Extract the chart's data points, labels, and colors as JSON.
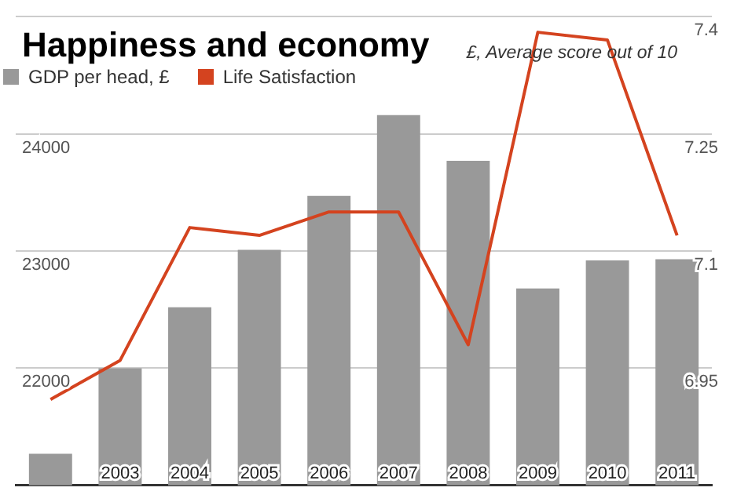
{
  "chart_data": {
    "type": "bar",
    "title": "Happiness and economy",
    "annotations": [
      "£, Average score out of 10"
    ],
    "categories": [
      null,
      "2003",
      "2004",
      "2005",
      "2006",
      "2007",
      "2008",
      "2009",
      "2010",
      "2011"
    ],
    "series": [
      {
        "name": "GDP per head, £",
        "color": "#999999",
        "values": [
          21270,
          22000,
          22520,
          23010,
          23470,
          24160,
          23770,
          22680,
          22920,
          22930
        ]
      },
      {
        "name": "Life Satisfaction",
        "type": "line",
        "axis": "y2",
        "color": "#d4431f",
        "values": [
          6.91,
          6.96,
          7.13,
          7.12,
          7.15,
          7.15,
          6.98,
          7.38,
          7.37,
          7.12
        ]
      }
    ],
    "ylim": [
      21000,
      25000
    ],
    "yticks": [
      {
        "value": 21000,
        "label": null
      },
      22000,
      23000,
      24000,
      {
        "value": 25000,
        "label": null
      }
    ],
    "y2lim": [
      6.8,
      7.4
    ],
    "y2ticks": [
      6.95,
      7.1,
      7.25,
      7.4
    ],
    "grid": "y",
    "legend": "top left",
    "marker": "none",
    "line_style": "solid"
  }
}
